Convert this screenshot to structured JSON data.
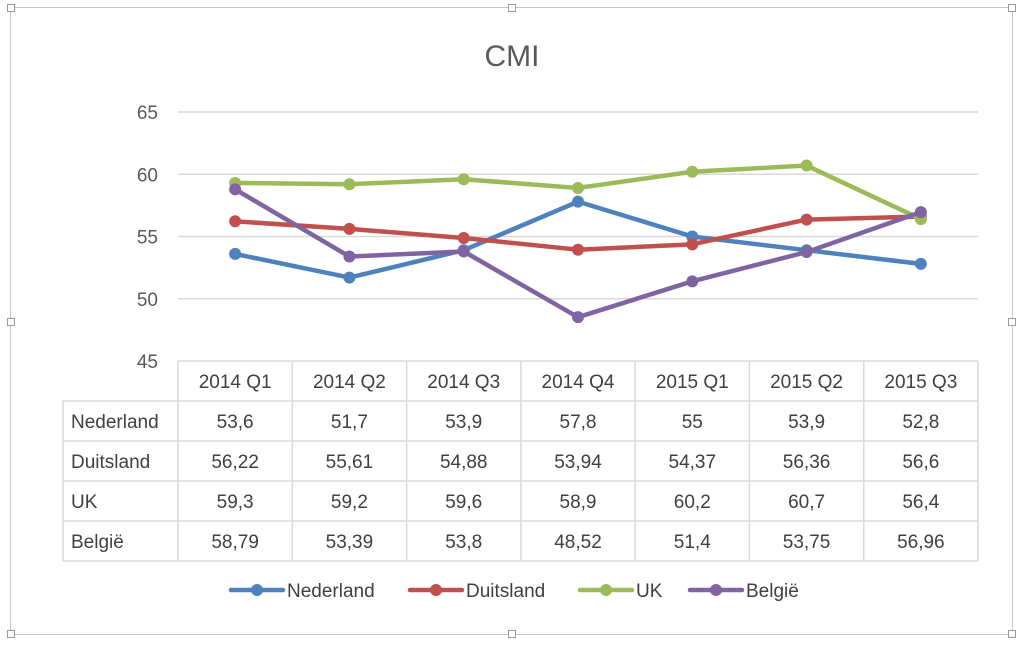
{
  "chart_data": {
    "type": "line",
    "title": "CMI",
    "categories": [
      "2014 Q1",
      "2014 Q2",
      "2014 Q3",
      "2014 Q4",
      "2015 Q1",
      "2015 Q2",
      "2015 Q3"
    ],
    "ylim": [
      45,
      65
    ],
    "yticks": [
      45,
      50,
      55,
      60,
      65
    ],
    "ytick_labels": [
      "45",
      "50",
      "55",
      "60",
      "65"
    ],
    "grid": true,
    "legend_position": "bottom",
    "data_table": true,
    "series": [
      {
        "name": "Nederland",
        "color": "#4f81bd",
        "values": [
          53.6,
          51.7,
          53.9,
          57.8,
          55,
          53.9,
          52.8
        ],
        "labels": [
          "53,6",
          "51,7",
          "53,9",
          "57,8",
          "55",
          "53,9",
          "52,8"
        ]
      },
      {
        "name": "Duitsland",
        "color": "#c0504d",
        "values": [
          56.22,
          55.61,
          54.88,
          53.94,
          54.37,
          56.36,
          56.6
        ],
        "labels": [
          "56,22",
          "55,61",
          "54,88",
          "53,94",
          "54,37",
          "56,36",
          "56,6"
        ]
      },
      {
        "name": "UK",
        "color": "#9bbb59",
        "values": [
          59.3,
          59.2,
          59.6,
          58.9,
          60.2,
          60.7,
          56.4
        ],
        "labels": [
          "59,3",
          "59,2",
          "59,6",
          "58,9",
          "60,2",
          "60,7",
          "56,4"
        ]
      },
      {
        "name": "België",
        "color": "#8064a2",
        "values": [
          58.79,
          53.39,
          53.8,
          48.52,
          51.4,
          53.75,
          56.96
        ],
        "labels": [
          "58,79",
          "53,39",
          "53,8",
          "48,52",
          "51,4",
          "53,75",
          "56,96"
        ]
      }
    ]
  }
}
